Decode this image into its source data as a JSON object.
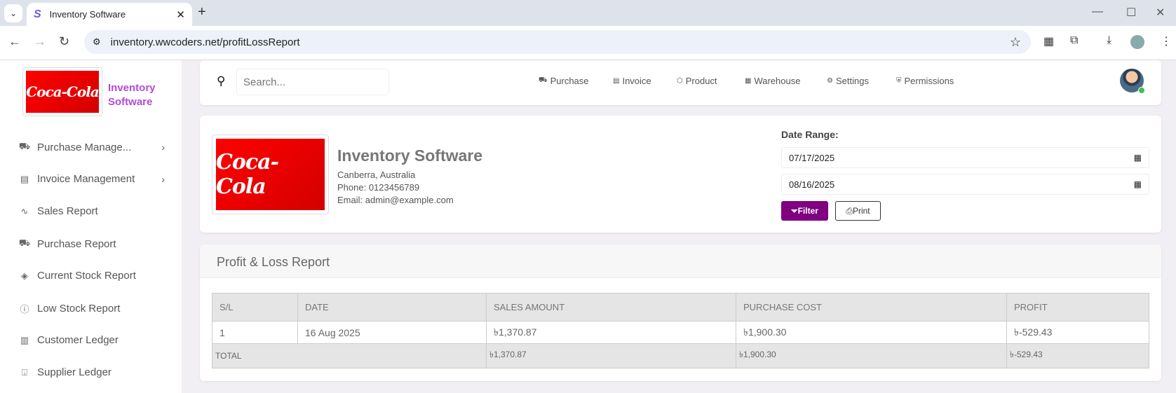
{
  "browser": {
    "tab_title": "Inventory Software",
    "url": "inventory.wwcoders.net/profitLossReport"
  },
  "sidebar": {
    "brand": "Inventory Software",
    "logo_text": "Coca-Cola",
    "items": [
      {
        "label": "Purchase Manage...",
        "icon": "cart-icon",
        "chevron": true
      },
      {
        "label": "Invoice Management",
        "icon": "invoice-icon",
        "chevron": true
      },
      {
        "label": "Sales Report",
        "icon": "chart-line-icon"
      },
      {
        "label": "Purchase Report",
        "icon": "cart-icon"
      },
      {
        "label": "Current Stock Report",
        "icon": "layers-icon"
      },
      {
        "label": "Low Stock Report",
        "icon": "alert-circle-icon"
      },
      {
        "label": "Customer Ledger",
        "icon": "book-icon"
      },
      {
        "label": "Supplier Ledger",
        "icon": "download-box-icon"
      }
    ]
  },
  "header": {
    "search_placeholder": "Search...",
    "nav": [
      {
        "label": "Purchase",
        "icon": "cart-icon"
      },
      {
        "label": "Invoice",
        "icon": "invoice-icon"
      },
      {
        "label": "Product",
        "icon": "box-icon"
      },
      {
        "label": "Warehouse",
        "icon": "building-icon"
      },
      {
        "label": "Settings",
        "icon": "gear-icon"
      },
      {
        "label": "Permissions",
        "icon": "shield-icon"
      }
    ]
  },
  "company": {
    "name": "Inventory Software",
    "address": "Canberra, Australia",
    "phone": "Phone: 0123456789",
    "email": "Email: admin@example.com"
  },
  "filter": {
    "label": "Date Range:",
    "from": "07/17/2025",
    "to": "08/16/2025",
    "filter_btn": "Filter",
    "print_btn": "Print",
    "accent": "#800080"
  },
  "report": {
    "title": "Profit & Loss Report",
    "columns": [
      "S/L",
      "DATE",
      "SALES AMOUNT",
      "PURCHASE COST",
      "PROFIT"
    ],
    "rows": [
      [
        "1",
        "16 Aug 2025",
        "৳1,370.87",
        "৳1,900.30",
        "৳-529.43"
      ]
    ],
    "total": {
      "label": "TOTAL",
      "sales": "৳1,370.87",
      "purchase": "৳1,900.30",
      "profit": "৳-529.43"
    }
  }
}
